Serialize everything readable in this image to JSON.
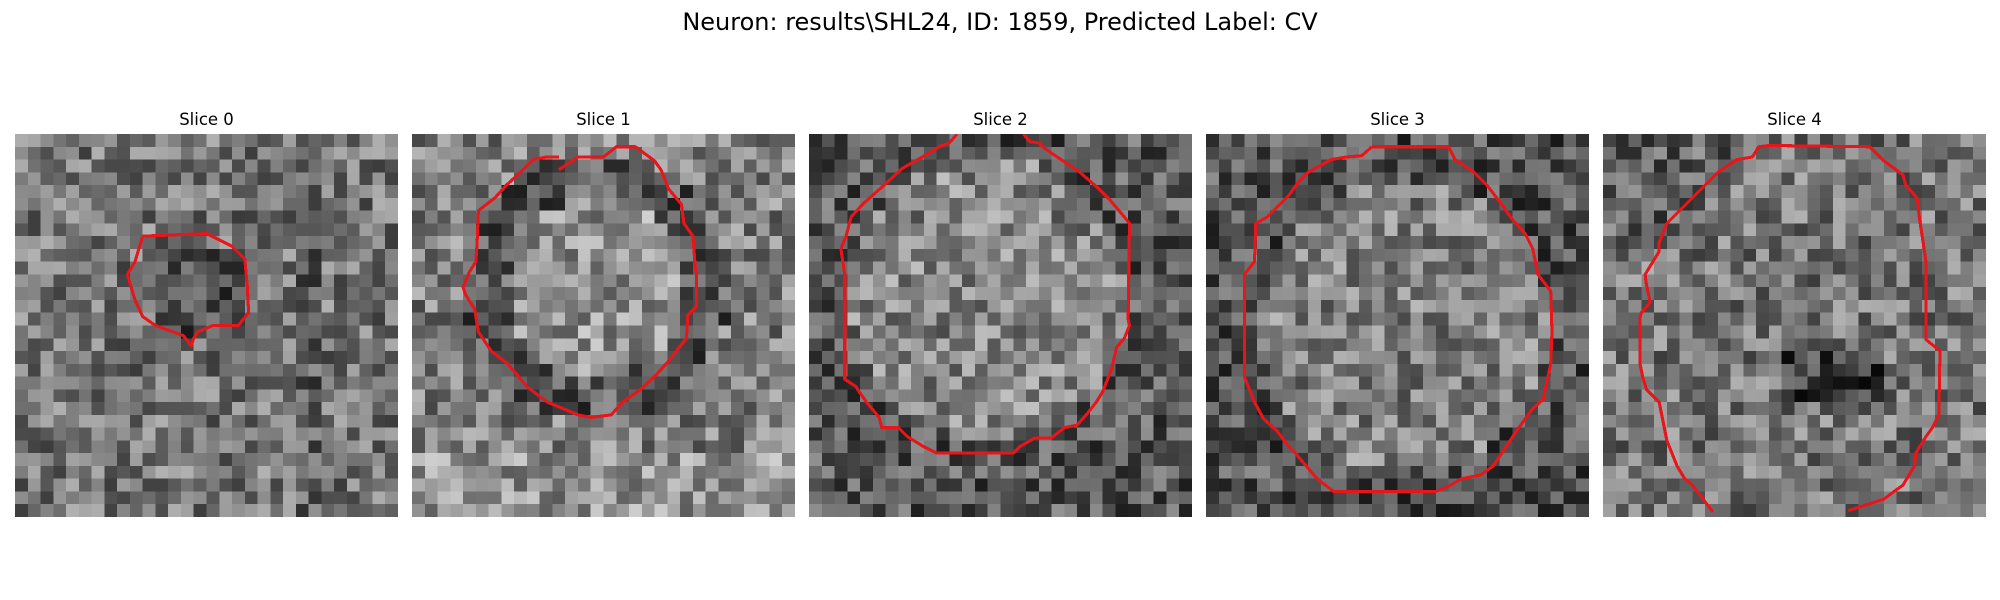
{
  "figure": {
    "title": "Neuron: results\\SHL24, ID: 1859, Predicted Label: CV"
  },
  "panels": [
    {
      "title": "Slice 0"
    },
    {
      "title": "Slice 1"
    },
    {
      "title": "Slice 2"
    },
    {
      "title": "Slice 3"
    },
    {
      "title": "Slice 4"
    }
  ],
  "colors": {
    "contour": "#e8151b",
    "background": "#ffffff",
    "pixel_scale": "grayscale"
  }
}
